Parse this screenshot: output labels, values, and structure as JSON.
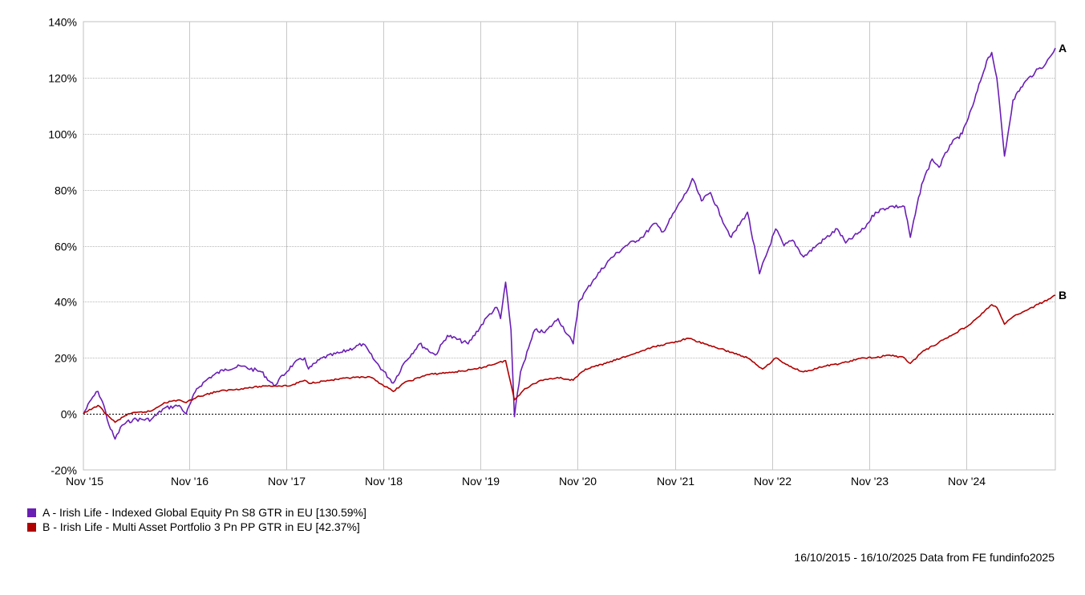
{
  "chart_data": {
    "type": "line",
    "title": "",
    "xlabel": "",
    "ylabel": "",
    "x_ticks": [
      "Nov '15",
      "Nov '16",
      "Nov '17",
      "Nov '18",
      "Nov '19",
      "Nov '20",
      "Nov '21",
      "Nov '22",
      "Nov '23",
      "Nov '24"
    ],
    "y_ticks": [
      "-20%",
      "0%",
      "20%",
      "40%",
      "60%",
      "80%",
      "100%",
      "120%",
      "140%"
    ],
    "ylim": [
      -20,
      140
    ],
    "xlim": [
      "2015-10-16",
      "2025-10-16"
    ],
    "grid": true,
    "zero_line": true,
    "series": [
      {
        "id": "A",
        "name": "A - Irish Life - Indexed Global Equity Pn S8 GTR in EU [130.59%]",
        "end_label": "A",
        "color": "#6a1fb4",
        "points": [
          [
            "2015-10-16",
            0
          ],
          [
            "2015-11-20",
            6
          ],
          [
            "2015-12-10",
            8
          ],
          [
            "2016-01-01",
            3
          ],
          [
            "2016-01-20",
            -4
          ],
          [
            "2016-02-12",
            -9
          ],
          [
            "2016-03-10",
            -4
          ],
          [
            "2016-04-20",
            -2
          ],
          [
            "2016-06-27",
            -2
          ],
          [
            "2016-08-15",
            2
          ],
          [
            "2016-10-10",
            3
          ],
          [
            "2016-11-05",
            0
          ],
          [
            "2016-12-15",
            9
          ],
          [
            "2017-02-01",
            13
          ],
          [
            "2017-04-01",
            16
          ],
          [
            "2017-06-01",
            17
          ],
          [
            "2017-08-15",
            15
          ],
          [
            "2017-10-01",
            10
          ],
          [
            "2017-12-15",
            18
          ],
          [
            "2018-01-25",
            20
          ],
          [
            "2018-02-08",
            16
          ],
          [
            "2018-04-01",
            20
          ],
          [
            "2018-06-15",
            22
          ],
          [
            "2018-09-01",
            25
          ],
          [
            "2018-10-15",
            19
          ],
          [
            "2018-12-24",
            11
          ],
          [
            "2019-02-01",
            18
          ],
          [
            "2019-04-01",
            25
          ],
          [
            "2019-05-31",
            21
          ],
          [
            "2019-07-15",
            28
          ],
          [
            "2019-10-01",
            25
          ],
          [
            "2019-12-15",
            35
          ],
          [
            "2020-01-17",
            38
          ],
          [
            "2020-01-31",
            34
          ],
          [
            "2020-02-19",
            47
          ],
          [
            "2020-03-10",
            30
          ],
          [
            "2020-03-23",
            -1
          ],
          [
            "2020-04-15",
            15
          ],
          [
            "2020-06-08",
            30
          ],
          [
            "2020-07-15",
            29
          ],
          [
            "2020-09-03",
            34
          ],
          [
            "2020-10-30",
            25
          ],
          [
            "2020-11-20",
            40
          ],
          [
            "2021-01-15",
            48
          ],
          [
            "2021-03-15",
            55
          ],
          [
            "2021-05-15",
            60
          ],
          [
            "2021-07-15",
            63
          ],
          [
            "2021-09-01",
            68
          ],
          [
            "2021-10-04",
            65
          ],
          [
            "2021-11-20",
            73
          ],
          [
            "2022-01-04",
            80
          ],
          [
            "2022-01-21",
            84
          ],
          [
            "2022-02-24",
            76
          ],
          [
            "2022-03-30",
            79
          ],
          [
            "2022-05-10",
            70
          ],
          [
            "2022-06-16",
            63
          ],
          [
            "2022-08-16",
            72
          ],
          [
            "2022-09-30",
            50
          ],
          [
            "2022-11-30",
            66
          ],
          [
            "2022-12-31",
            60
          ],
          [
            "2023-02-02",
            62
          ],
          [
            "2023-03-15",
            56
          ],
          [
            "2023-05-01",
            60
          ],
          [
            "2023-07-20",
            66
          ],
          [
            "2023-08-20",
            61
          ],
          [
            "2023-10-27",
            66
          ],
          [
            "2023-12-10",
            72
          ],
          [
            "2024-02-01",
            74
          ],
          [
            "2024-03-28",
            74
          ],
          [
            "2024-04-19",
            63
          ],
          [
            "2024-06-01",
            82
          ],
          [
            "2024-07-10",
            91
          ],
          [
            "2024-08-05",
            88
          ],
          [
            "2024-09-15",
            96
          ],
          [
            "2024-10-31",
            100
          ],
          [
            "2024-12-10",
            110
          ],
          [
            "2025-01-31",
            126
          ],
          [
            "2025-02-19",
            129
          ],
          [
            "2025-03-10",
            120
          ],
          [
            "2025-04-08",
            92
          ],
          [
            "2025-05-10",
            112
          ],
          [
            "2025-06-20",
            118
          ],
          [
            "2025-08-01",
            122
          ],
          [
            "2025-09-10",
            125
          ],
          [
            "2025-10-01",
            128
          ],
          [
            "2025-10-16",
            130.59
          ]
        ]
      },
      {
        "id": "B",
        "name": "B - Irish Life - Multi Asset Portfolio 3 Pn PP GTR in EU [42.37%]",
        "end_label": "B",
        "color": "#b00000",
        "points": [
          [
            "2015-10-16",
            0
          ],
          [
            "2015-11-20",
            2
          ],
          [
            "2015-12-10",
            3
          ],
          [
            "2016-01-20",
            -1
          ],
          [
            "2016-02-12",
            -3
          ],
          [
            "2016-04-01",
            0
          ],
          [
            "2016-06-27",
            1
          ],
          [
            "2016-08-15",
            4
          ],
          [
            "2016-10-10",
            5
          ],
          [
            "2016-11-05",
            4
          ],
          [
            "2016-12-15",
            6
          ],
          [
            "2017-03-01",
            8
          ],
          [
            "2017-06-01",
            9
          ],
          [
            "2017-09-01",
            10
          ],
          [
            "2017-12-01",
            10
          ],
          [
            "2018-01-25",
            12
          ],
          [
            "2018-02-08",
            11
          ],
          [
            "2018-05-01",
            12
          ],
          [
            "2018-08-01",
            13
          ],
          [
            "2018-10-01",
            13
          ],
          [
            "2018-12-24",
            8
          ],
          [
            "2019-02-01",
            11
          ],
          [
            "2019-05-01",
            14
          ],
          [
            "2019-08-15",
            15
          ],
          [
            "2019-11-01",
            16
          ],
          [
            "2020-02-19",
            19
          ],
          [
            "2020-03-23",
            5
          ],
          [
            "2020-05-01",
            9
          ],
          [
            "2020-07-01",
            12
          ],
          [
            "2020-09-01",
            13
          ],
          [
            "2020-10-30",
            12
          ],
          [
            "2020-12-15",
            16
          ],
          [
            "2021-03-01",
            18
          ],
          [
            "2021-06-01",
            21
          ],
          [
            "2021-09-01",
            24
          ],
          [
            "2021-12-01",
            26
          ],
          [
            "2022-01-04",
            27
          ],
          [
            "2022-03-07",
            25
          ],
          [
            "2022-06-16",
            22
          ],
          [
            "2022-08-16",
            20
          ],
          [
            "2022-10-12",
            16
          ],
          [
            "2022-12-01",
            20
          ],
          [
            "2023-01-20",
            17
          ],
          [
            "2023-03-15",
            15
          ],
          [
            "2023-06-01",
            17
          ],
          [
            "2023-08-01",
            18
          ],
          [
            "2023-10-27",
            20
          ],
          [
            "2023-12-01",
            20
          ],
          [
            "2024-02-01",
            21
          ],
          [
            "2024-03-28",
            20
          ],
          [
            "2024-04-19",
            18
          ],
          [
            "2024-06-01",
            22
          ],
          [
            "2024-09-01",
            27
          ],
          [
            "2024-12-01",
            32
          ],
          [
            "2025-02-19",
            39
          ],
          [
            "2025-03-10",
            38
          ],
          [
            "2025-04-08",
            32
          ],
          [
            "2025-05-15",
            35
          ],
          [
            "2025-07-01",
            37
          ],
          [
            "2025-09-01",
            40
          ],
          [
            "2025-10-16",
            42.37
          ]
        ]
      }
    ]
  },
  "legend": [
    {
      "label": "A - Irish Life - Indexed Global Equity Pn S8 GTR in EU [130.59%]",
      "color": "#6a1fb4"
    },
    {
      "label": "B - Irish Life - Multi Asset Portfolio 3 Pn PP GTR in EU [42.37%]",
      "color": "#b00000"
    }
  ],
  "footer": {
    "text": "16/10/2015 - 16/10/2025 Data from FE fundinfo2025"
  }
}
